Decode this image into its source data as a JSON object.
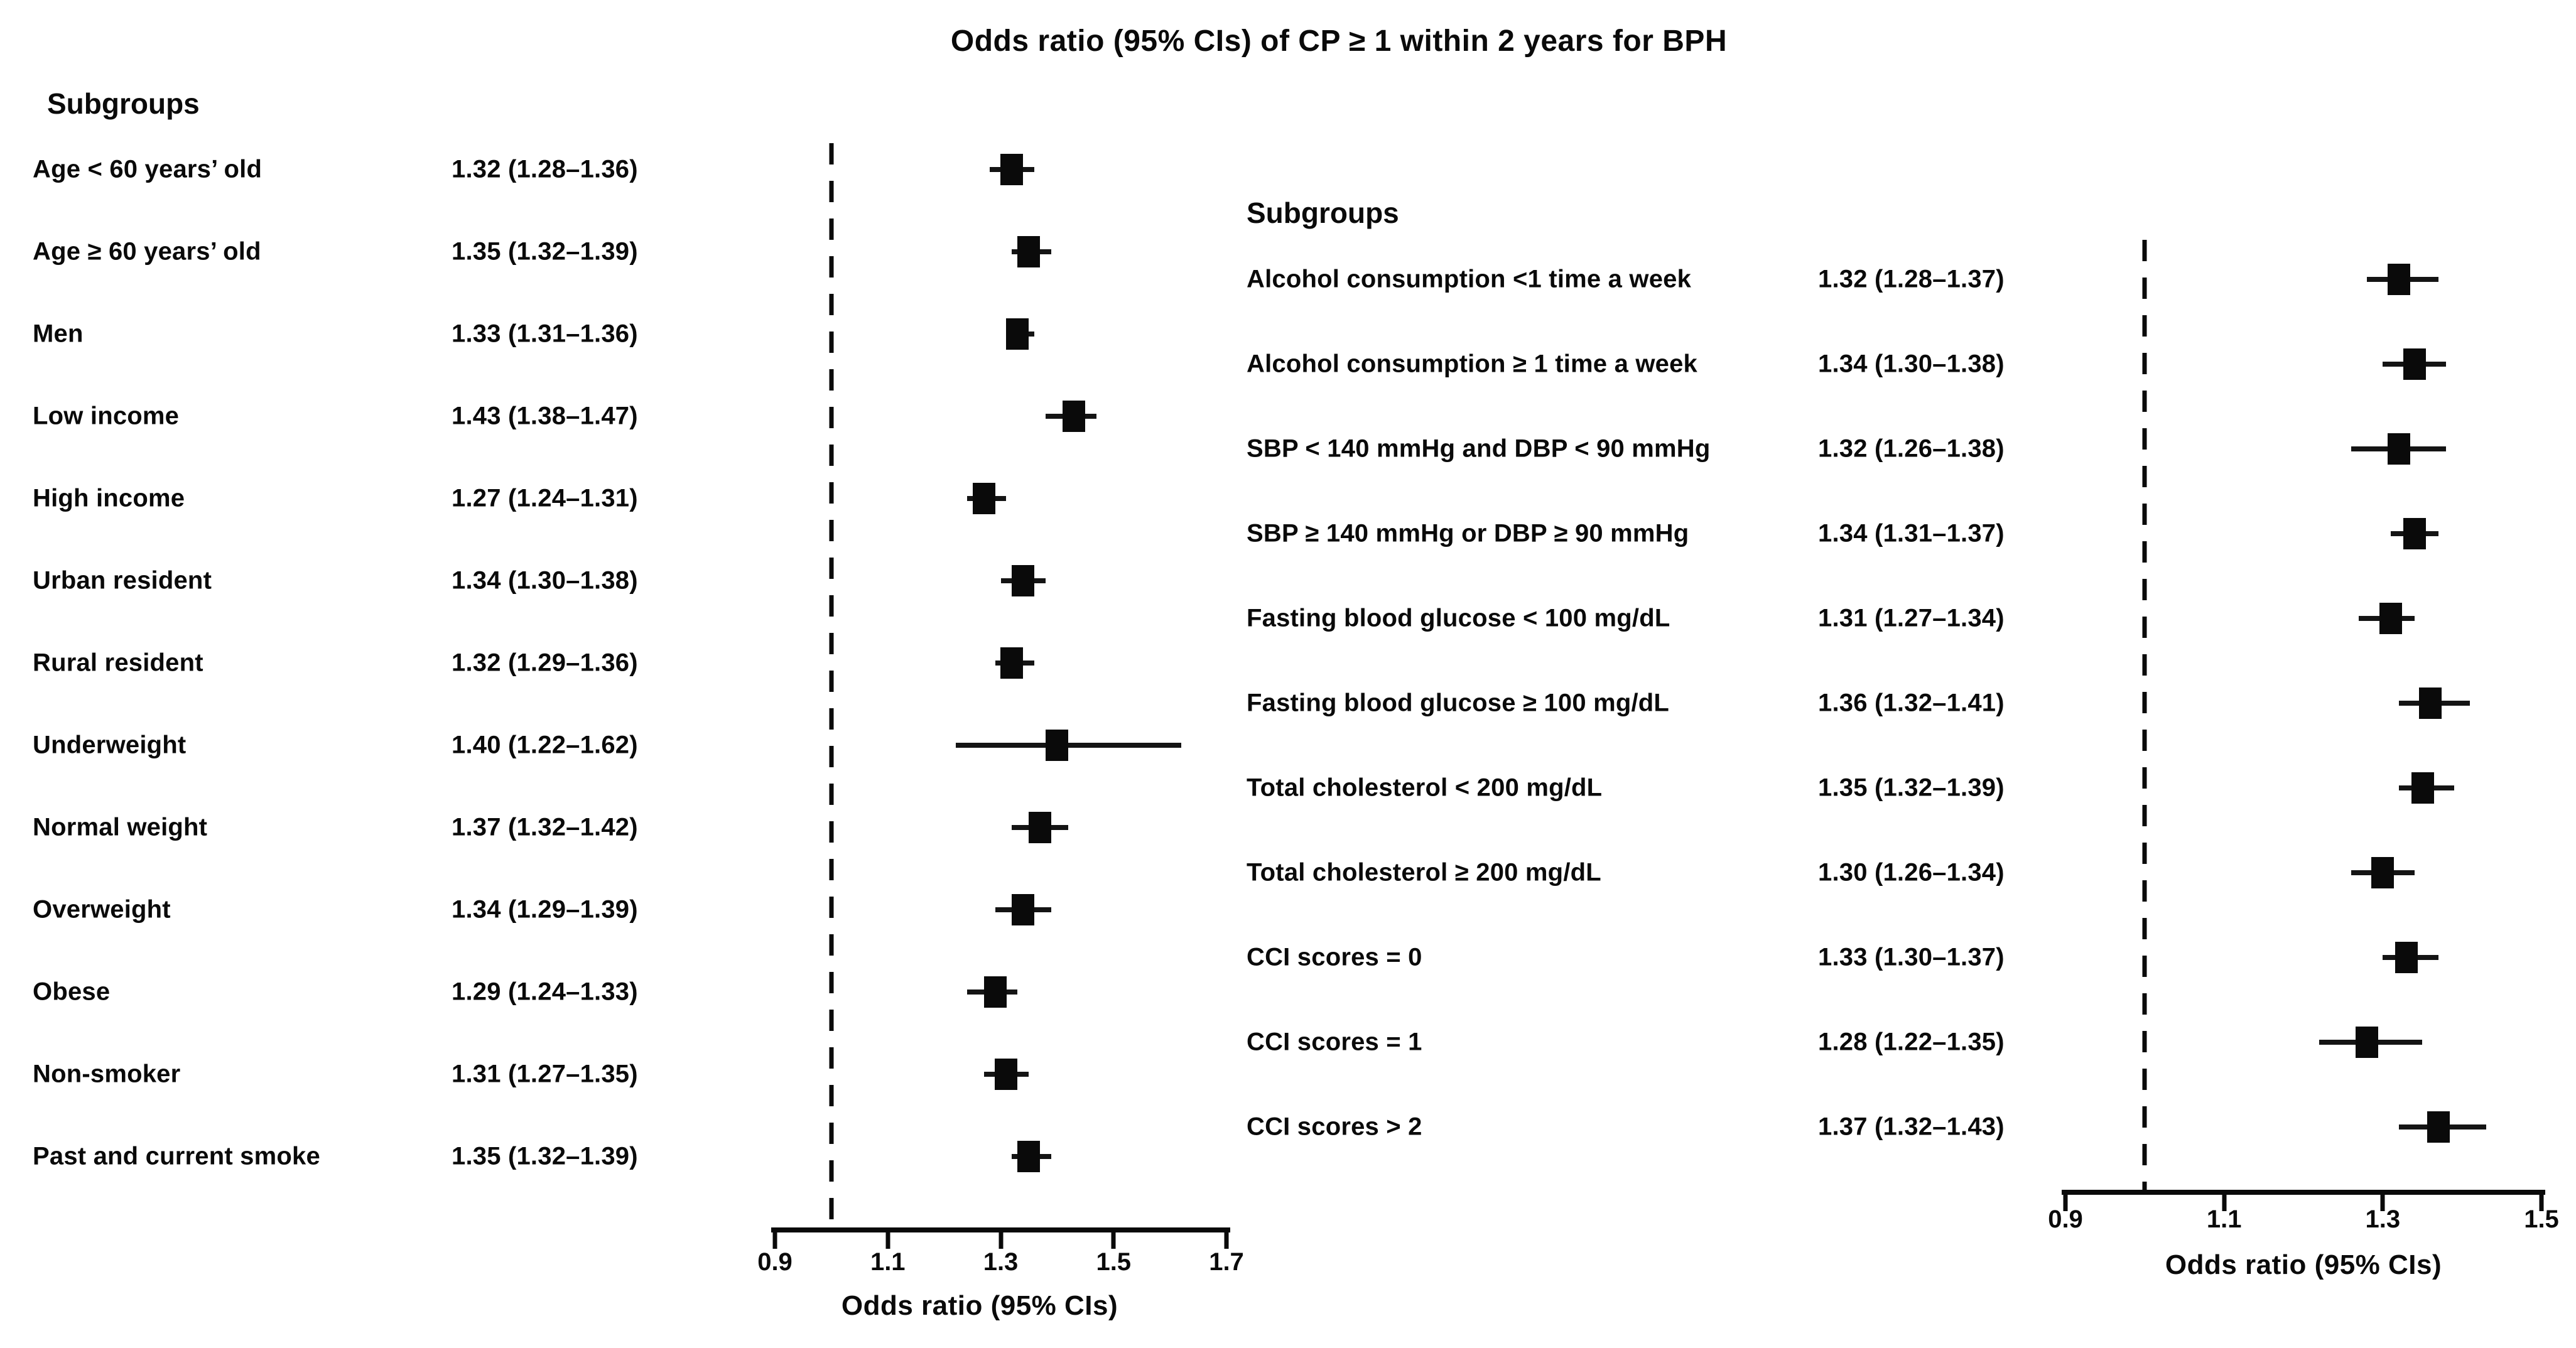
{
  "title": "Odds ratio (95% CIs) of CP ≥ 1 within 2 years for BPH",
  "chart_data": [
    {
      "type": "forest",
      "panel": "left",
      "header": "Subgroups",
      "xlabel": "Odds ratio (95% CIs)",
      "xlim": [
        0.9,
        1.7
      ],
      "ticks": [
        "0.9",
        "1.1",
        "1.3",
        "1.5",
        "1.7"
      ],
      "ref_line": 1.0,
      "marker": "square",
      "rows": [
        {
          "label": "Age < 60 years’ old",
          "display": "1.32 (1.28–1.36)",
          "or": 1.32,
          "lo": 1.28,
          "hi": 1.36
        },
        {
          "label": "Age ≥ 60 years’ old",
          "display": "1.35 (1.32–1.39)",
          "or": 1.35,
          "lo": 1.32,
          "hi": 1.39
        },
        {
          "label": "Men",
          "display": "1.33 (1.31–1.36)",
          "or": 1.33,
          "lo": 1.31,
          "hi": 1.36
        },
        {
          "label": "Low income",
          "display": "1.43 (1.38–1.47)",
          "or": 1.43,
          "lo": 1.38,
          "hi": 1.47
        },
        {
          "label": "High income",
          "display": "1.27 (1.24–1.31)",
          "or": 1.27,
          "lo": 1.24,
          "hi": 1.31
        },
        {
          "label": "Urban resident",
          "display": "1.34 (1.30–1.38)",
          "or": 1.34,
          "lo": 1.3,
          "hi": 1.38
        },
        {
          "label": "Rural resident",
          "display": "1.32 (1.29–1.36)",
          "or": 1.32,
          "lo": 1.29,
          "hi": 1.36
        },
        {
          "label": "Underweight",
          "display": "1.40 (1.22–1.62)",
          "or": 1.4,
          "lo": 1.22,
          "hi": 1.62
        },
        {
          "label": "Normal weight",
          "display": "1.37 (1.32–1.42)",
          "or": 1.37,
          "lo": 1.32,
          "hi": 1.42
        },
        {
          "label": "Overweight",
          "display": "1.34 (1.29–1.39)",
          "or": 1.34,
          "lo": 1.29,
          "hi": 1.39
        },
        {
          "label": "Obese",
          "display": "1.29 (1.24–1.33)",
          "or": 1.29,
          "lo": 1.24,
          "hi": 1.33
        },
        {
          "label": "Non-smoker",
          "display": "1.31 (1.27–1.35)",
          "or": 1.31,
          "lo": 1.27,
          "hi": 1.35
        },
        {
          "label": "Past and current smoke",
          "display": "1.35 (1.32–1.39)",
          "or": 1.35,
          "lo": 1.32,
          "hi": 1.39
        }
      ]
    },
    {
      "type": "forest",
      "panel": "right",
      "header": "Subgroups",
      "xlabel": "Odds ratio (95% CIs)",
      "xlim": [
        0.9,
        1.5
      ],
      "ticks": [
        "0.9",
        "1.1",
        "1.3",
        "1.5"
      ],
      "ref_line": 1.0,
      "marker": "square",
      "rows": [
        {
          "label": "Alcohol consumption <1 time a week",
          "display": "1.32 (1.28–1.37)",
          "or": 1.32,
          "lo": 1.28,
          "hi": 1.37
        },
        {
          "label": "Alcohol consumption ≥ 1 time a week",
          "display": "1.34 (1.30–1.38)",
          "or": 1.34,
          "lo": 1.3,
          "hi": 1.38
        },
        {
          "label": "SBP < 140 mmHg and DBP < 90 mmHg",
          "display": "1.32 (1.26–1.38)",
          "or": 1.32,
          "lo": 1.26,
          "hi": 1.38
        },
        {
          "label": "SBP ≥  140 mmHg or DBP ≥  90 mmHg",
          "display": "1.34 (1.31–1.37)",
          "or": 1.34,
          "lo": 1.31,
          "hi": 1.37
        },
        {
          "label": "Fasting blood glucose < 100 mg/dL",
          "display": "1.31 (1.27–1.34)",
          "or": 1.31,
          "lo": 1.27,
          "hi": 1.34
        },
        {
          "label": "Fasting blood glucose ≥ 100 mg/dL",
          "display": "1.36 (1.32–1.41)",
          "or": 1.36,
          "lo": 1.32,
          "hi": 1.41
        },
        {
          "label": "Total cholesterol < 200 mg/dL",
          "display": "1.35 (1.32–1.39)",
          "or": 1.35,
          "lo": 1.32,
          "hi": 1.39
        },
        {
          "label": "Total cholesterol ≥  200 mg/dL",
          "display": "1.30 (1.26–1.34)",
          "or": 1.3,
          "lo": 1.26,
          "hi": 1.34
        },
        {
          "label": "CCI scores = 0",
          "display": "1.33 (1.30–1.37)",
          "or": 1.33,
          "lo": 1.3,
          "hi": 1.37
        },
        {
          "label": "CCI scores = 1",
          "display": "1.28 (1.22–1.35)",
          "or": 1.28,
          "lo": 1.22,
          "hi": 1.35
        },
        {
          "label": "CCI scores > 2",
          "display": "1.37 (1.32–1.43)",
          "or": 1.37,
          "lo": 1.32,
          "hi": 1.43
        }
      ]
    }
  ]
}
